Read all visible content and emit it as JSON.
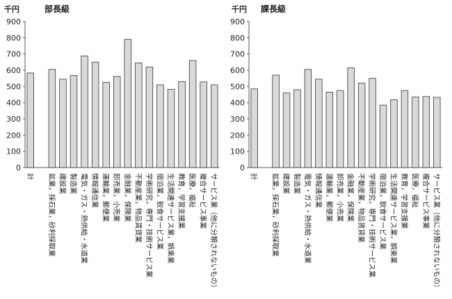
{
  "chart_data": [
    {
      "type": "bar",
      "title": "部長級",
      "ylabel": "千円",
      "ylim": [
        0,
        900
      ],
      "yticks": [
        0,
        100,
        200,
        300,
        400,
        500,
        600,
        700,
        800,
        900
      ],
      "categories": [
        "計",
        "",
        "鉱業，採石業，砂利採取業",
        "建設業",
        "製造業",
        "電気・ガス・熱供給・水道業",
        "情報通信業",
        "運輸業，郵便業",
        "卸売業，小売業",
        "金融業，保険業",
        "不動産業，物品賃貸業",
        "学術研究，専門・技術サービス業",
        "宿泊業，飲食サービス業",
        "生活関連サービス業，娯楽業",
        "教育，学習支援業",
        "医療，福祉",
        "複合サービス事業",
        "サービス業（他に分類されないもの）"
      ],
      "values": [
        583,
        null,
        605,
        545,
        567,
        688,
        650,
        525,
        562,
        790,
        645,
        620,
        510,
        482,
        530,
        660,
        528,
        510
      ],
      "bar_color": "#d9d9d9"
    },
    {
      "type": "bar",
      "title": "課長級",
      "ylabel": "千円",
      "ylim": [
        0,
        900
      ],
      "yticks": [
        0,
        100,
        200,
        300,
        400,
        500,
        600,
        700,
        800,
        900
      ],
      "categories": [
        "計",
        "",
        "鉱業，採石業，砂利採取業",
        "建設業",
        "製造業",
        "電気・ガス・熱供給・水道業",
        "情報通信業",
        "運輸業，郵便業",
        "卸売業，小売業",
        "金融業，保険業",
        "不動産業，物品賃貸業",
        "学術研究，専門・技術サービス業",
        "宿泊業，飲食サービス業",
        "生活関連サービス業，娯楽業",
        "教育，学習支援業",
        "医療，福祉",
        "複合サービス事業",
        "サービス業（他に分類されないもの）"
      ],
      "values": [
        485,
        null,
        570,
        460,
        480,
        605,
        545,
        465,
        475,
        615,
        520,
        550,
        385,
        418,
        475,
        435,
        438,
        433
      ],
      "bar_color": "#d9d9d9"
    }
  ]
}
